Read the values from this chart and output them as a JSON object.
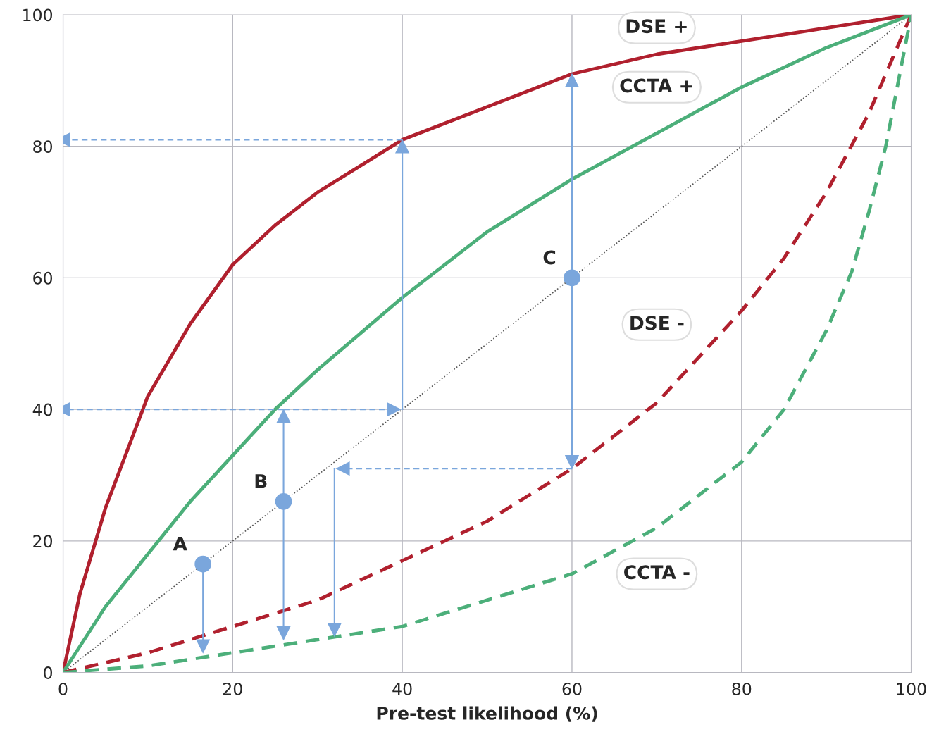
{
  "chart_data": {
    "type": "line",
    "xlabel": "Pre-test likelihood (%)",
    "xlim": [
      0,
      100
    ],
    "ylim": [
      0,
      100
    ],
    "xticks": [
      0,
      20,
      40,
      60,
      80,
      100
    ],
    "yticks": [
      0,
      20,
      40,
      60,
      80,
      100
    ],
    "grid": true,
    "legend": false,
    "series": [
      {
        "type": "line",
        "color": "#555555",
        "line_style": "dotted",
        "x": [
          0,
          100
        ],
        "values": [
          0,
          100
        ]
      },
      {
        "name": "DSE +",
        "color": "#b0202e",
        "line_style": "solid",
        "x": [
          0,
          2,
          5,
          10,
          15,
          20,
          25,
          30,
          40,
          50,
          60,
          70,
          80,
          90,
          100
        ],
        "values": [
          0,
          12,
          25,
          42,
          53,
          62,
          68,
          73,
          81,
          86,
          91,
          94,
          96,
          98,
          100
        ]
      },
      {
        "name": "CCTA +",
        "color": "#4caf7a",
        "line_style": "solid",
        "x": [
          0,
          2,
          5,
          10,
          15,
          20,
          25,
          30,
          40,
          50,
          60,
          70,
          80,
          90,
          100
        ],
        "values": [
          0,
          4,
          10,
          18,
          26,
          33,
          40,
          46,
          57,
          67,
          75,
          82,
          89,
          95,
          100
        ]
      },
      {
        "name": "DSE -",
        "color": "#b0202e",
        "line_style": "dashed",
        "x": [
          0,
          10,
          20,
          30,
          40,
          50,
          60,
          70,
          80,
          85,
          90,
          95,
          100
        ],
        "values": [
          0,
          3,
          7,
          11,
          17,
          23,
          31,
          41,
          55,
          63,
          73,
          85,
          100
        ]
      },
      {
        "name": "CCTA -",
        "color": "#4caf7a",
        "line_style": "dashed",
        "x": [
          0,
          10,
          20,
          30,
          40,
          50,
          60,
          70,
          80,
          85,
          90,
          93,
          95,
          97,
          100
        ],
        "values": [
          0,
          1,
          3,
          5,
          7,
          11,
          15,
          22,
          32,
          40,
          52,
          61,
          70,
          80,
          100
        ]
      },
      {
        "type": "line",
        "color": "#7aa6dc",
        "line_style": "solid",
        "marker": "triangle",
        "x": [
          40,
          40
        ],
        "values": [
          40,
          80
        ]
      },
      {
        "type": "line",
        "color": "#7aa6dc",
        "line_style": "dashed",
        "marker": "triangle",
        "x": [
          40,
          0
        ],
        "values": [
          81,
          81
        ]
      },
      {
        "type": "line",
        "color": "#7aa6dc",
        "line_style": "dashed",
        "marker": "triangle",
        "x": [
          26,
          0
        ],
        "values": [
          40,
          40
        ]
      },
      {
        "type": "line",
        "color": "#7aa6dc",
        "line_style": "dashed",
        "marker": "triangle",
        "x": [
          26,
          39
        ],
        "values": [
          40,
          40
        ]
      },
      {
        "type": "line",
        "color": "#7aa6dc",
        "line_style": "solid",
        "marker": "triangle",
        "x": [
          16.5,
          16.5
        ],
        "values": [
          16.5,
          4
        ]
      },
      {
        "type": "line",
        "color": "#7aa6dc",
        "line_style": "solid",
        "marker": "triangle",
        "x": [
          26,
          26
        ],
        "values": [
          26,
          39
        ]
      },
      {
        "type": "line",
        "color": "#7aa6dc",
        "line_style": "solid",
        "marker": "triangle",
        "x": [
          26,
          26
        ],
        "values": [
          26,
          6
        ]
      },
      {
        "type": "line",
        "color": "#7aa6dc",
        "line_style": "solid",
        "marker": "triangle",
        "x": [
          60,
          60
        ],
        "values": [
          60,
          90
        ]
      },
      {
        "type": "line",
        "color": "#7aa6dc",
        "line_style": "solid",
        "marker": "triangle",
        "x": [
          60,
          60
        ],
        "values": [
          60,
          32
        ]
      },
      {
        "type": "line",
        "color": "#7aa6dc",
        "line_style": "dashed",
        "marker": "triangle",
        "x": [
          60,
          33
        ],
        "values": [
          31,
          31
        ]
      },
      {
        "type": "line",
        "color": "#7aa6dc",
        "line_style": "solid",
        "marker": "triangle",
        "x": [
          32,
          32
        ],
        "values": [
          31,
          6.5
        ]
      },
      {
        "type": "scatter",
        "color": "#7aa6dc",
        "marker": "circle",
        "x": [
          16.5,
          26,
          60
        ],
        "values": [
          16.5,
          26,
          60
        ]
      }
    ],
    "annotations": [
      {
        "text": "A",
        "x": 16.5,
        "y": 16.5
      },
      {
        "text": "B",
        "x": 26,
        "y": 26
      },
      {
        "text": "C",
        "x": 60,
        "y": 60
      }
    ]
  }
}
